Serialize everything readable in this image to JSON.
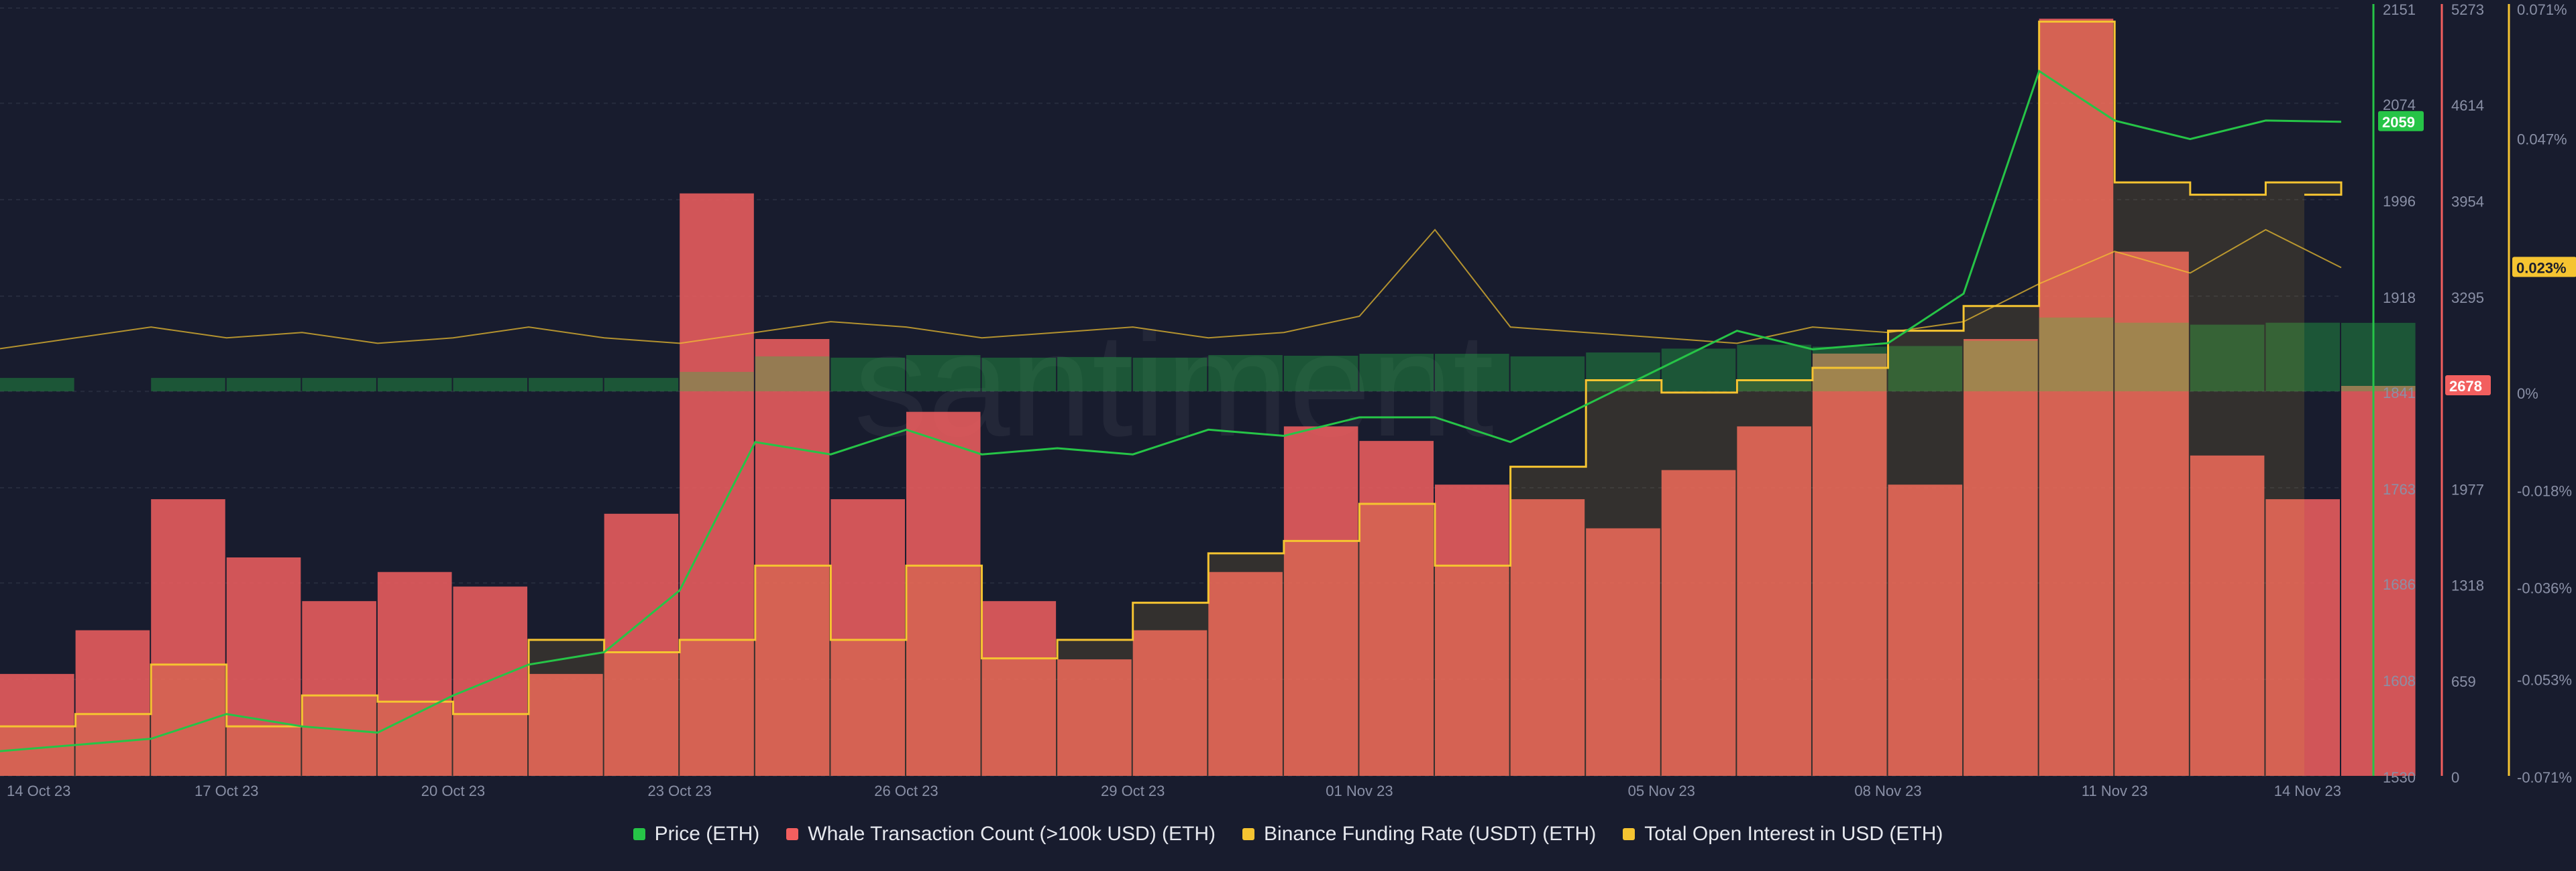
{
  "watermark": "santiment",
  "legend": [
    {
      "label": "Price (ETH)",
      "color": "#26c447"
    },
    {
      "label": "Whale Transaction Count (>100k USD) (ETH)",
      "color": "#f25f5f"
    },
    {
      "label": "Binance Funding Rate (USDT) (ETH)",
      "color": "#f5c431"
    },
    {
      "label": "Total Open Interest in USD (ETH)",
      "color": "#f5c431"
    }
  ],
  "chart_data": {
    "type": "line",
    "x_ticks": [
      "14 Oct 23",
      "17 Oct 23",
      "20 Oct 23",
      "23 Oct 23",
      "26 Oct 23",
      "29 Oct 23",
      "01 Nov 23",
      "05 Nov 23",
      "08 Nov 23",
      "11 Nov 23",
      "14 Nov 23"
    ],
    "x_range": [
      "2023-10-14",
      "2023-11-14"
    ],
    "axes": {
      "price": {
        "ticks": [
          "2151",
          "2074",
          "1996",
          "1918",
          "1841",
          "1763",
          "1686",
          "1608",
          "1530"
        ],
        "ylim": [
          1530,
          2151
        ],
        "current_label": "2059"
      },
      "whale_count": {
        "ticks": [
          "5273",
          "4614",
          "3954",
          "3295",
          "1977",
          "1318",
          "659",
          "0"
        ],
        "ylim": [
          0,
          5273
        ],
        "current_label": "2678"
      },
      "funding_rate": {
        "ticks": [
          "0.071%",
          "0.047%",
          "0%",
          "-0.018%",
          "-0.036%",
          "-0.053%",
          "-0.071%"
        ],
        "ylim": [
          -0.071,
          0.071
        ],
        "current_label": "0.023%"
      }
    },
    "series": [
      {
        "name": "Price (ETH)",
        "color": "#26c447",
        "x": [
          "2023-10-14",
          "2023-10-16",
          "2023-10-17",
          "2023-10-18",
          "2023-10-19",
          "2023-10-20",
          "2023-10-21",
          "2023-10-22",
          "2023-10-23",
          "2023-10-24",
          "2023-10-25",
          "2023-10-26",
          "2023-10-27",
          "2023-10-28",
          "2023-10-29",
          "2023-10-30",
          "2023-10-31",
          "2023-11-01",
          "2023-11-02",
          "2023-11-03",
          "2023-11-04",
          "2023-11-05",
          "2023-11-06",
          "2023-11-07",
          "2023-11-08",
          "2023-11-09",
          "2023-11-10",
          "2023-11-11",
          "2023-11-12",
          "2023-11-13",
          "2023-11-14"
        ],
        "values": [
          1550,
          1560,
          1580,
          1570,
          1565,
          1595,
          1620,
          1630,
          1680,
          1800,
          1790,
          1810,
          1790,
          1795,
          1790,
          1810,
          1805,
          1820,
          1820,
          1800,
          1830,
          1860,
          1890,
          1875,
          1880,
          1920,
          2100,
          2060,
          2045,
          2060,
          2059
        ]
      },
      {
        "name": "Whale Transaction Count (>100k USD) (ETH)",
        "color": "#f25f5f",
        "x": [
          "2023-10-14",
          "2023-10-15",
          "2023-10-16",
          "2023-10-17",
          "2023-10-18",
          "2023-10-19",
          "2023-10-20",
          "2023-10-21",
          "2023-10-22",
          "2023-10-23",
          "2023-10-24",
          "2023-10-25",
          "2023-10-26",
          "2023-10-27",
          "2023-10-28",
          "2023-10-29",
          "2023-10-30",
          "2023-10-31",
          "2023-11-01",
          "2023-11-02",
          "2023-11-03",
          "2023-11-04",
          "2023-11-05",
          "2023-11-06",
          "2023-11-07",
          "2023-11-08",
          "2023-11-09",
          "2023-11-10",
          "2023-11-11",
          "2023-11-12",
          "2023-11-13",
          "2023-11-14"
        ],
        "values": [
          700,
          1000,
          1900,
          1500,
          1200,
          1400,
          1300,
          700,
          1800,
          4000,
          3000,
          1900,
          2500,
          1200,
          800,
          1000,
          1400,
          2400,
          2300,
          2000,
          1900,
          1700,
          2100,
          2400,
          2900,
          2000,
          3000,
          5200,
          3600,
          2200,
          1900,
          2678
        ]
      },
      {
        "name": "Binance Funding Rate (USDT) (ETH)",
        "color": "#f5c431",
        "x": [
          "2023-10-14",
          "2023-10-15",
          "2023-10-16",
          "2023-10-17",
          "2023-10-18",
          "2023-10-19",
          "2023-10-20",
          "2023-10-21",
          "2023-10-22",
          "2023-10-23",
          "2023-10-24",
          "2023-10-25",
          "2023-10-26",
          "2023-10-27",
          "2023-10-28",
          "2023-10-29",
          "2023-10-30",
          "2023-10-31",
          "2023-11-01",
          "2023-11-02",
          "2023-11-03",
          "2023-11-04",
          "2023-11-05",
          "2023-11-06",
          "2023-11-07",
          "2023-11-08",
          "2023-11-09",
          "2023-11-10",
          "2023-11-11",
          "2023-11-12",
          "2023-11-13",
          "2023-11-14"
        ],
        "values": [
          0.008,
          0.01,
          0.012,
          0.01,
          0.011,
          0.009,
          0.01,
          0.012,
          0.01,
          0.009,
          0.011,
          0.013,
          0.012,
          0.01,
          0.011,
          0.012,
          0.01,
          0.011,
          0.014,
          0.03,
          0.012,
          0.011,
          0.01,
          0.009,
          0.012,
          0.011,
          0.013,
          0.02,
          0.026,
          0.022,
          0.03,
          0.023
        ]
      },
      {
        "name": "Total Open Interest in USD (ETH)",
        "color": "#f5c431",
        "x": [
          "2023-10-14",
          "2023-10-15",
          "2023-10-16",
          "2023-10-17",
          "2023-10-18",
          "2023-10-19",
          "2023-10-20",
          "2023-10-21",
          "2023-10-22",
          "2023-10-23",
          "2023-10-24",
          "2023-10-25",
          "2023-10-26",
          "2023-10-27",
          "2023-10-28",
          "2023-10-29",
          "2023-10-30",
          "2023-10-31",
          "2023-11-01",
          "2023-11-02",
          "2023-11-03",
          "2023-11-04",
          "2023-11-05",
          "2023-11-06",
          "2023-11-07",
          "2023-11-08",
          "2023-11-09",
          "2023-11-10",
          "2023-11-11",
          "2023-11-12",
          "2023-11-13",
          "2023-11-14"
        ],
        "values": [
          1570,
          1580,
          1620,
          1570,
          1595,
          1590,
          1580,
          1640,
          1630,
          1640,
          1700,
          1640,
          1700,
          1625,
          1640,
          1670,
          1710,
          1720,
          1750,
          1700,
          1780,
          1850,
          1840,
          1850,
          1860,
          1890,
          1910,
          2140,
          2010,
          2000,
          2010,
          2000
        ]
      }
    ]
  }
}
